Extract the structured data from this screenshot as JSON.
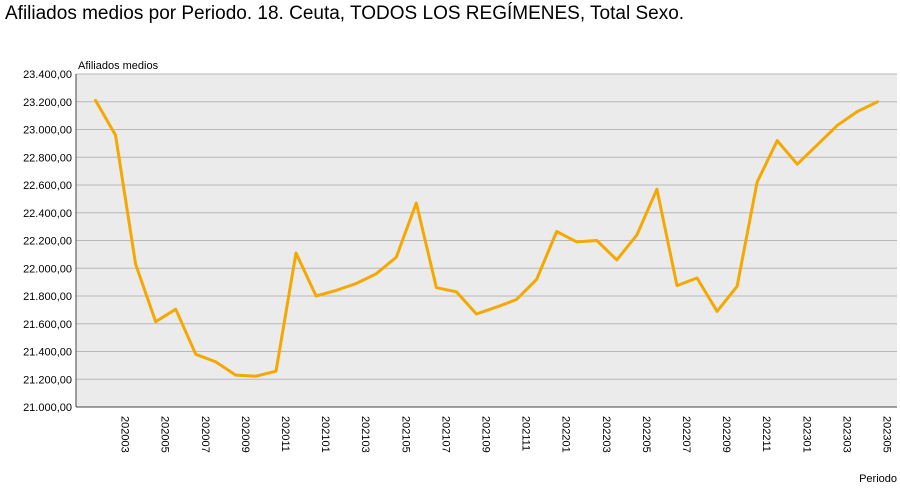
{
  "chart_data": {
    "type": "line",
    "title": "Afiliados medios por Periodo. 18. Ceuta, TODOS LOS REGÍMENES, Total Sexo.",
    "ylabel": "Afiliados medios",
    "xlabel": "Periodo",
    "ylim": [
      21000,
      23400
    ],
    "yticks": [
      "21.000,00",
      "21.200,00",
      "21.400,00",
      "21.600,00",
      "21.800,00",
      "22.000,00",
      "22.200,00",
      "22.400,00",
      "22.600,00",
      "22.800,00",
      "23.000,00",
      "23.200,00",
      "23.400,00"
    ],
    "grid": true,
    "line_color": "#F5A800",
    "plot_background": "#EBEBEB",
    "x": [
      "202002",
      "202003",
      "202004",
      "202005",
      "202006",
      "202007",
      "202008",
      "202009",
      "202010",
      "202011",
      "202012",
      "202101",
      "202102",
      "202103",
      "202104",
      "202105",
      "202106",
      "202107",
      "202108",
      "202109",
      "202110",
      "202111",
      "202112",
      "202201",
      "202202",
      "202203",
      "202204",
      "202205",
      "202206",
      "202207",
      "202208",
      "202209",
      "202210",
      "202211",
      "202212",
      "202301",
      "202302",
      "202303",
      "202304",
      "202305"
    ],
    "x_tick_labels": [
      "202003",
      "202005",
      "202007",
      "202009",
      "202011",
      "202101",
      "202103",
      "202105",
      "202107",
      "202109",
      "202111",
      "202201",
      "202203",
      "202205",
      "202207",
      "202209",
      "202211",
      "202301",
      "202303",
      "202305"
    ],
    "series": [
      {
        "values": [
          23210,
          22960,
          22030,
          21615,
          21705,
          21380,
          21325,
          21230,
          21222,
          21258,
          22110,
          21800,
          21840,
          21890,
          21960,
          22080,
          22470,
          21860,
          21830,
          21670,
          21720,
          21775,
          21920,
          22265,
          22190,
          22200,
          22060,
          22240,
          22570,
          21875,
          21930,
          21690,
          21870,
          22620,
          22920,
          22750,
          22890,
          23030,
          23130,
          23200
        ]
      }
    ]
  }
}
